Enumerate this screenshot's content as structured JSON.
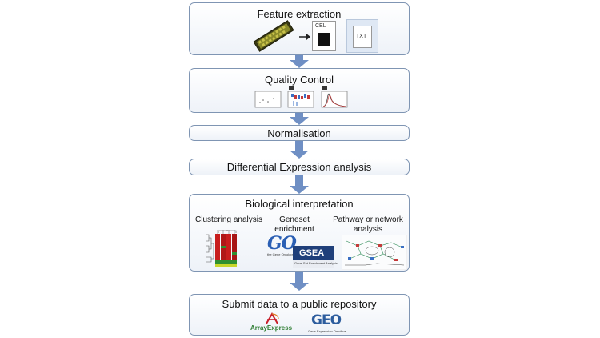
{
  "steps": {
    "feature_extraction": "Feature extraction",
    "quality_control": "Quality Control",
    "normalisation": "Normalisation",
    "differential_expression": "Differential Expression analysis",
    "biological_interpretation": "Biological interpretation",
    "submit": "Submit data to a public repository"
  },
  "files": {
    "cel": "CEL",
    "txt": "TXT"
  },
  "bio": {
    "clustering": "Clustering analysis",
    "geneset_1": "Geneset",
    "geneset_2": "enrichment",
    "pathway_1": "Pathway or network",
    "pathway_2": "analysis"
  },
  "logos": {
    "go": "GO",
    "go_caption": "the Gene Ontology",
    "gsea": "GSEA",
    "gsea_caption": "Gene Set Enrichment Analysis",
    "arrayexpress": "ArrayExpress",
    "geo": "GEO",
    "geo_caption": "Gene Expression Omnibus"
  },
  "colors": {
    "border": "#7f95b3",
    "arrow": "#6f8fc4",
    "heat_red": "#c81e1e",
    "heat_green": "#2f8f2f"
  }
}
